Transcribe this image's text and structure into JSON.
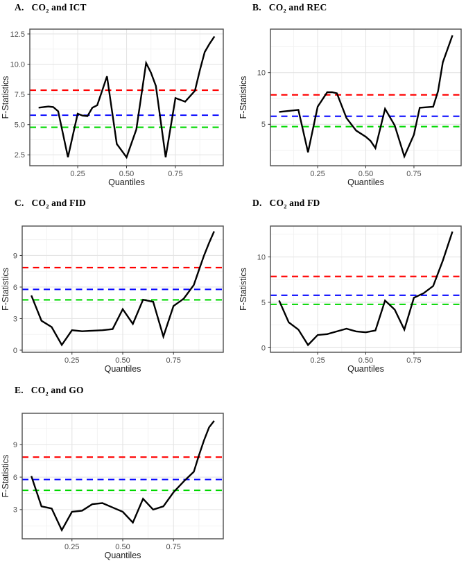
{
  "figure": {
    "background": "#ffffff",
    "line_color": "#000000",
    "grid_major_color": "#e4e4e4",
    "grid_minor_color": "#f1f1f1",
    "border_color": "#4d4d4d",
    "tick_label_color": "#4d4d4d",
    "axis_label_color": "#1a1a1a",
    "critical_colors": {
      "red": "#ff0000",
      "blue": "#0a0aff",
      "green": "#00d800"
    }
  },
  "chart_data": [
    {
      "panel": "A",
      "type": "line",
      "title_prefix": "A.",
      "title_main": "CO",
      "title_sub": "2",
      "title_rest": " and ICT",
      "xlabel": "Quantiles",
      "ylabel": "F-Statistics",
      "xlim": [
        0.005,
        0.995
      ],
      "ylim": [
        1.6,
        12.9
      ],
      "x_tick_values": [
        0.25,
        0.5,
        0.75
      ],
      "x_ticks": [
        "0.25",
        "0.50",
        "0.75"
      ],
      "y_tick_values": [
        2.5,
        5.0,
        7.5,
        10.0,
        12.5
      ],
      "y_ticks": [
        "2.5",
        "5.0",
        "7.5",
        "10.0",
        "12.5"
      ],
      "critical_lines": [
        {
          "name": "red",
          "color": "#ff0000",
          "value": 7.85
        },
        {
          "name": "blue",
          "color": "#0a0aff",
          "value": 5.78
        },
        {
          "name": "green",
          "color": "#00d800",
          "value": 4.78
        }
      ],
      "points": [
        [
          0.05,
          6.4
        ],
        [
          0.1,
          6.5
        ],
        [
          0.125,
          6.45
        ],
        [
          0.15,
          6.1
        ],
        [
          0.2,
          2.3
        ],
        [
          0.25,
          5.9
        ],
        [
          0.275,
          5.75
        ],
        [
          0.3,
          5.7
        ],
        [
          0.325,
          6.4
        ],
        [
          0.35,
          6.6
        ],
        [
          0.375,
          7.8
        ],
        [
          0.4,
          9.0
        ],
        [
          0.45,
          3.4
        ],
        [
          0.475,
          2.85
        ],
        [
          0.5,
          2.3
        ],
        [
          0.55,
          4.6
        ],
        [
          0.6,
          10.1
        ],
        [
          0.625,
          9.3
        ],
        [
          0.65,
          8.2
        ],
        [
          0.7,
          2.3
        ],
        [
          0.75,
          7.2
        ],
        [
          0.8,
          6.9
        ],
        [
          0.85,
          7.8
        ],
        [
          0.875,
          9.5
        ],
        [
          0.9,
          11.0
        ],
        [
          0.925,
          11.7
        ],
        [
          0.95,
          12.3
        ]
      ]
    },
    {
      "panel": "B",
      "type": "line",
      "title_prefix": "B.",
      "title_main": "CO",
      "title_sub": "2",
      "title_rest": " and REC",
      "xlabel": "Quantiles",
      "ylabel": "F-Statistics",
      "xlim": [
        0.005,
        0.995
      ],
      "ylim": [
        1.0,
        14.2
      ],
      "x_tick_values": [
        0.25,
        0.5,
        0.75
      ],
      "x_ticks": [
        "0.25",
        "0.50",
        "0.75"
      ],
      "y_tick_values": [
        5,
        10
      ],
      "y_ticks": [
        "5",
        "10"
      ],
      "critical_lines": [
        {
          "name": "red",
          "color": "#ff0000",
          "value": 7.85
        },
        {
          "name": "blue",
          "color": "#0a0aff",
          "value": 5.78
        },
        {
          "name": "green",
          "color": "#00d800",
          "value": 4.78
        }
      ],
      "points": [
        [
          0.05,
          6.2
        ],
        [
          0.1,
          6.3
        ],
        [
          0.15,
          6.4
        ],
        [
          0.2,
          2.3
        ],
        [
          0.25,
          6.7
        ],
        [
          0.3,
          8.1
        ],
        [
          0.325,
          8.1
        ],
        [
          0.35,
          8.0
        ],
        [
          0.4,
          5.6
        ],
        [
          0.45,
          4.4
        ],
        [
          0.5,
          3.8
        ],
        [
          0.525,
          3.4
        ],
        [
          0.55,
          2.7
        ],
        [
          0.6,
          6.5
        ],
        [
          0.65,
          4.9
        ],
        [
          0.7,
          1.9
        ],
        [
          0.75,
          4.0
        ],
        [
          0.78,
          6.6
        ],
        [
          0.85,
          6.7
        ],
        [
          0.875,
          8.2
        ],
        [
          0.9,
          11.0
        ],
        [
          0.95,
          13.6
        ]
      ]
    },
    {
      "panel": "C",
      "type": "line",
      "title_prefix": "C.",
      "title_main": "CO",
      "title_sub": "2",
      "title_rest": " and FID",
      "xlabel": "Quantiles",
      "ylabel": "F-Statistics",
      "xlim": [
        0.005,
        0.995
      ],
      "ylim": [
        -0.2,
        11.8
      ],
      "x_tick_values": [
        0.25,
        0.5,
        0.75
      ],
      "x_ticks": [
        "0.25",
        "0.50",
        "0.75"
      ],
      "y_tick_values": [
        0,
        3,
        6,
        9
      ],
      "y_ticks": [
        "0",
        "3",
        "6",
        "9"
      ],
      "critical_lines": [
        {
          "name": "red",
          "color": "#ff0000",
          "value": 7.85
        },
        {
          "name": "blue",
          "color": "#0a0aff",
          "value": 5.78
        },
        {
          "name": "green",
          "color": "#00d800",
          "value": 4.78
        }
      ],
      "points": [
        [
          0.05,
          5.2
        ],
        [
          0.075,
          4.0
        ],
        [
          0.1,
          2.8
        ],
        [
          0.15,
          2.2
        ],
        [
          0.2,
          0.5
        ],
        [
          0.25,
          1.9
        ],
        [
          0.3,
          1.8
        ],
        [
          0.35,
          1.85
        ],
        [
          0.4,
          1.9
        ],
        [
          0.45,
          2.0
        ],
        [
          0.5,
          3.9
        ],
        [
          0.55,
          2.5
        ],
        [
          0.6,
          4.8
        ],
        [
          0.625,
          4.7
        ],
        [
          0.65,
          4.6
        ],
        [
          0.7,
          1.3
        ],
        [
          0.75,
          4.2
        ],
        [
          0.8,
          4.9
        ],
        [
          0.85,
          6.2
        ],
        [
          0.875,
          7.6
        ],
        [
          0.9,
          9.0
        ],
        [
          0.925,
          10.2
        ],
        [
          0.95,
          11.3
        ]
      ]
    },
    {
      "panel": "D",
      "type": "line",
      "title_prefix": "D.",
      "title_main": "CO",
      "title_sub": "2",
      "title_rest": " and FD",
      "xlabel": "Quantiles",
      "ylabel": "F-Statistics",
      "xlim": [
        0.005,
        0.995
      ],
      "ylim": [
        -0.5,
        13.4
      ],
      "x_tick_values": [
        0.25,
        0.5,
        0.75
      ],
      "x_ticks": [
        "0.25",
        "0.50",
        "0.75"
      ],
      "y_tick_values": [
        0,
        5,
        10
      ],
      "y_ticks": [
        "0",
        "5",
        "10"
      ],
      "critical_lines": [
        {
          "name": "red",
          "color": "#ff0000",
          "value": 7.85
        },
        {
          "name": "blue",
          "color": "#0a0aff",
          "value": 5.78
        },
        {
          "name": "green",
          "color": "#00d800",
          "value": 4.78
        }
      ],
      "points": [
        [
          0.05,
          5.2
        ],
        [
          0.1,
          2.8
        ],
        [
          0.15,
          2.0
        ],
        [
          0.2,
          0.3
        ],
        [
          0.25,
          1.4
        ],
        [
          0.3,
          1.5
        ],
        [
          0.35,
          1.8
        ],
        [
          0.4,
          2.1
        ],
        [
          0.45,
          1.8
        ],
        [
          0.5,
          1.7
        ],
        [
          0.55,
          1.9
        ],
        [
          0.6,
          5.2
        ],
        [
          0.65,
          4.2
        ],
        [
          0.7,
          2.0
        ],
        [
          0.75,
          5.5
        ],
        [
          0.8,
          6.0
        ],
        [
          0.85,
          6.8
        ],
        [
          0.9,
          9.6
        ],
        [
          0.95,
          12.8
        ]
      ]
    },
    {
      "panel": "E",
      "type": "line",
      "title_prefix": "E.",
      "title_main": "CO",
      "title_sub": "2",
      "title_rest": " and GO",
      "xlabel": "Quantiles",
      "ylabel": "F-Statistics",
      "xlim": [
        0.005,
        0.995
      ],
      "ylim": [
        0.3,
        11.9
      ],
      "x_tick_values": [
        0.25,
        0.5,
        0.75
      ],
      "x_ticks": [
        "0.25",
        "0.50",
        "0.75"
      ],
      "y_tick_values": [
        3,
        6,
        9
      ],
      "y_ticks": [
        "3",
        "6",
        "9"
      ],
      "critical_lines": [
        {
          "name": "red",
          "color": "#ff0000",
          "value": 7.85
        },
        {
          "name": "blue",
          "color": "#0a0aff",
          "value": 5.78
        },
        {
          "name": "green",
          "color": "#00d800",
          "value": 4.78
        }
      ],
      "points": [
        [
          0.05,
          6.1
        ],
        [
          0.1,
          3.3
        ],
        [
          0.15,
          3.1
        ],
        [
          0.2,
          1.1
        ],
        [
          0.25,
          2.8
        ],
        [
          0.3,
          2.9
        ],
        [
          0.35,
          3.5
        ],
        [
          0.4,
          3.6
        ],
        [
          0.45,
          3.2
        ],
        [
          0.5,
          2.8
        ],
        [
          0.55,
          1.8
        ],
        [
          0.6,
          4.0
        ],
        [
          0.65,
          3.0
        ],
        [
          0.7,
          3.3
        ],
        [
          0.75,
          4.6
        ],
        [
          0.8,
          5.6
        ],
        [
          0.85,
          6.5
        ],
        [
          0.875,
          8.0
        ],
        [
          0.9,
          9.4
        ],
        [
          0.925,
          10.6
        ],
        [
          0.95,
          11.2
        ]
      ]
    }
  ]
}
